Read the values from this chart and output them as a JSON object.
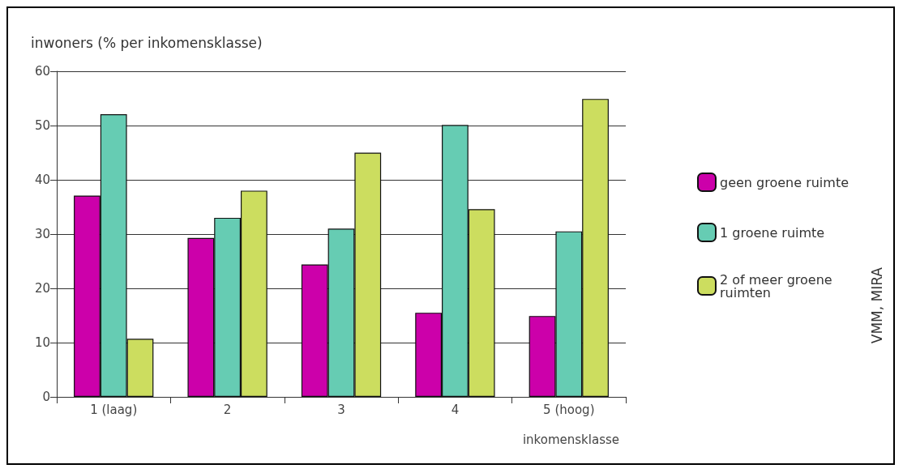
{
  "chart_data": {
    "type": "bar",
    "ylabel": "inwoners (% per inkomensklasse)",
    "xlabel": "inkomensklasse",
    "categories": [
      "1 (laag)",
      "2",
      "3",
      "4",
      "5 (hoog)"
    ],
    "series": [
      {
        "name": "geen groene ruimte",
        "color": "#cc00aa",
        "values": [
          37.1,
          29.3,
          24.4,
          15.5,
          14.9
        ]
      },
      {
        "name": "1 groene ruimte",
        "color": "#66ccb3",
        "values": [
          52.1,
          33,
          31,
          50.1,
          30.5
        ]
      },
      {
        "name": "2 of meer groene ruimten",
        "color": "#ccdd5f",
        "values": [
          10.7,
          38,
          45,
          34.6,
          54.9
        ]
      }
    ],
    "ylim": [
      0,
      60
    ],
    "yticks": [
      0,
      10,
      20,
      30,
      40,
      50,
      60
    ],
    "grid": "y",
    "legend": "right",
    "annotations": [
      "VMM, MIRA"
    ]
  }
}
